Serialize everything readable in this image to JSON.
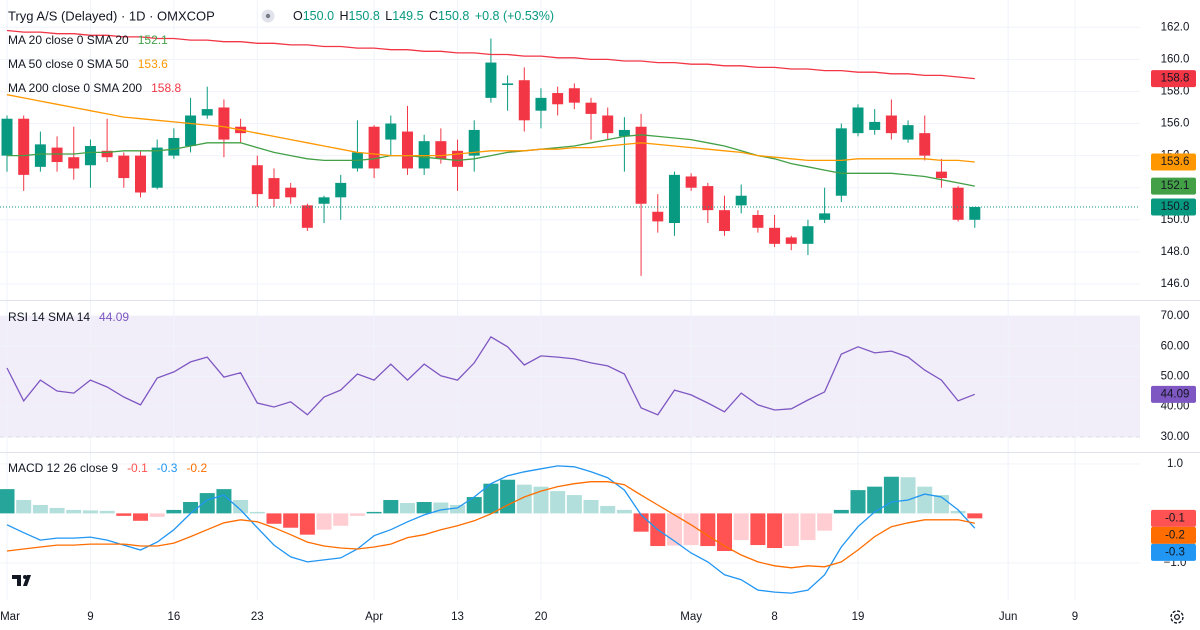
{
  "header": {
    "title": "Tryg A/S (Delayed) · 1D · OMXCOP",
    "ohlc": [
      {
        "key": "O",
        "value": "150.0"
      },
      {
        "key": "H",
        "value": "150.8"
      },
      {
        "key": "L",
        "value": "149.5"
      },
      {
        "key": "C",
        "value": "150.8"
      }
    ],
    "change": "+0.8 (+0.53%)"
  },
  "chart_data": [
    {
      "type": "candlestick",
      "up_color": "#089981",
      "down_color": "#f23645",
      "grid": true,
      "xlim": [
        -0.42,
        67.9
      ],
      "ylim": [
        145.0,
        163.7
      ],
      "yticks": [
        {
          "value": 146,
          "label": "146.0"
        },
        {
          "value": 148,
          "label": "148.0"
        },
        {
          "value": 150,
          "label": "150.0"
        },
        {
          "value": 152,
          "label": "152.0"
        },
        {
          "value": 154,
          "label": "154.0"
        },
        {
          "value": 156,
          "label": "156.0"
        },
        {
          "value": 158,
          "label": "158.0"
        },
        {
          "value": 160,
          "label": "160.0"
        },
        {
          "value": 162,
          "label": "162.0"
        }
      ],
      "open": [
        154.0,
        156.3,
        153.3,
        154.5,
        153.9,
        153.4,
        154.3,
        154.0,
        154.0,
        152.0,
        154.0,
        154.6,
        156.5,
        157.0,
        155.8,
        153.4,
        152.6,
        152.0,
        150.9,
        151.0,
        151.4,
        153.2,
        155.8,
        155.0,
        155.5,
        153.2,
        154.9,
        154.3,
        154.0,
        157.6,
        158.4,
        158.7,
        156.8,
        157.9,
        158.2,
        157.3,
        156.5,
        155.2,
        155.8,
        150.5,
        149.8,
        152.7,
        152.1,
        150.6,
        150.9,
        150.3,
        149.5,
        148.9,
        148.5,
        150.0,
        151.5,
        155.4,
        155.6,
        156.5,
        155.0,
        155.4,
        153.0,
        152.0,
        150.0
      ],
      "high": [
        156.5,
        156.5,
        155.5,
        155.2,
        155.8,
        155.0,
        156.3,
        154.2,
        154.3,
        155.0,
        155.7,
        157.6,
        158.3,
        157.5,
        156.3,
        154.0,
        153.2,
        152.3,
        151.0,
        151.5,
        152.8,
        156.2,
        155.9,
        156.5,
        157.1,
        155.3,
        155.7,
        155.0,
        156.2,
        161.3,
        159.0,
        159.5,
        158.2,
        158.3,
        158.5,
        157.6,
        157.0,
        156.4,
        156.6,
        151.6,
        153.0,
        152.9,
        152.3,
        151.5,
        152.2,
        150.6,
        150.3,
        149.0,
        150.0,
        152.0,
        156.0,
        157.2,
        156.9,
        157.5,
        156.2,
        156.5,
        153.8,
        152.1,
        150.8
      ],
      "low": [
        153.0,
        151.8,
        153.0,
        153.0,
        152.5,
        152.0,
        153.6,
        152.0,
        151.4,
        151.9,
        153.8,
        154.2,
        156.3,
        153.9,
        154.8,
        150.8,
        150.8,
        151.0,
        149.3,
        149.8,
        150.0,
        153.0,
        152.6,
        154.0,
        152.8,
        152.8,
        153.5,
        151.8,
        153.0,
        157.3,
        156.8,
        155.5,
        155.7,
        156.5,
        156.9,
        155.0,
        155.0,
        153.0,
        146.5,
        149.2,
        149.0,
        151.8,
        149.8,
        149.0,
        150.4,
        149.2,
        148.3,
        148.1,
        147.8,
        149.8,
        151.1,
        155.2,
        155.3,
        155.0,
        154.8,
        153.7,
        152.0,
        149.9,
        149.5
      ],
      "close": [
        156.3,
        152.8,
        154.7,
        153.6,
        153.2,
        154.6,
        153.9,
        152.6,
        151.7,
        154.5,
        155.1,
        156.5,
        156.9,
        155.0,
        155.4,
        151.6,
        151.3,
        151.4,
        149.5,
        151.4,
        152.3,
        154.2,
        153.2,
        156.0,
        153.2,
        154.9,
        153.8,
        153.3,
        155.6,
        159.8,
        158.5,
        156.2,
        157.6,
        157.2,
        157.3,
        156.6,
        155.4,
        155.6,
        151.0,
        149.9,
        152.8,
        152.0,
        150.6,
        149.3,
        151.5,
        149.5,
        148.5,
        148.5,
        149.6,
        150.4,
        155.7,
        157.0,
        156.1,
        155.4,
        155.9,
        154.0,
        152.6,
        150.0,
        150.8
      ],
      "series": [
        {
          "name": "MA 20 close 0 SMA 20",
          "color": "#43a047",
          "values": [
            154.0,
            154.0,
            154.1,
            154.1,
            154.1,
            154.2,
            154.2,
            154.3,
            154.3,
            154.3,
            154.4,
            154.6,
            154.8,
            154.8,
            154.8,
            154.5,
            154.2,
            154.0,
            153.8,
            153.7,
            153.7,
            153.7,
            153.8,
            154.0,
            154.0,
            153.9,
            153.8,
            153.7,
            153.8,
            154.0,
            154.2,
            154.3,
            154.4,
            154.5,
            154.6,
            154.8,
            155.0,
            155.2,
            155.3,
            155.2,
            155.1,
            155.0,
            154.8,
            154.6,
            154.3,
            154.0,
            153.8,
            153.5,
            153.3,
            153.1,
            152.9,
            152.9,
            152.9,
            152.9,
            152.8,
            152.7,
            152.5,
            152.3,
            152.1
          ]
        },
        {
          "name": "MA 50 close 0 SMA 50",
          "color": "#ff9800",
          "values": [
            157.8,
            157.6,
            157.4,
            157.2,
            157.0,
            156.8,
            156.6,
            156.4,
            156.3,
            156.2,
            156.1,
            156.0,
            155.9,
            155.8,
            155.6,
            155.4,
            155.2,
            155.0,
            154.8,
            154.6,
            154.4,
            154.2,
            154.1,
            154.0,
            154.0,
            154.0,
            154.0,
            154.1,
            154.2,
            154.3,
            154.3,
            154.3,
            154.4,
            154.4,
            154.5,
            154.5,
            154.6,
            154.7,
            154.8,
            154.7,
            154.6,
            154.5,
            154.4,
            154.3,
            154.2,
            154.0,
            153.9,
            153.8,
            153.7,
            153.7,
            153.7,
            153.8,
            153.8,
            153.8,
            153.8,
            153.8,
            153.7,
            153.7,
            153.6
          ]
        },
        {
          "name": "MA 200 close 0 SMA 200",
          "color": "#f23645",
          "values": [
            161.8,
            161.7,
            161.7,
            161.6,
            161.6,
            161.5,
            161.5,
            161.4,
            161.4,
            161.3,
            161.3,
            161.2,
            161.2,
            161.1,
            161.1,
            161.0,
            161.0,
            160.9,
            160.9,
            160.8,
            160.8,
            160.7,
            160.7,
            160.6,
            160.6,
            160.5,
            160.5,
            160.4,
            160.4,
            160.3,
            160.3,
            160.2,
            160.2,
            160.1,
            160.1,
            160.0,
            160.0,
            159.9,
            159.9,
            159.8,
            159.8,
            159.7,
            159.7,
            159.6,
            159.6,
            159.5,
            159.5,
            159.4,
            159.4,
            159.3,
            159.3,
            159.2,
            159.2,
            159.1,
            159.1,
            159.0,
            159.0,
            158.9,
            158.8
          ]
        }
      ]
    },
    {
      "type": "line",
      "grid": true,
      "xlim": [
        -0.42,
        67.9
      ],
      "ylim": [
        25.0,
        75.3
      ],
      "yticks": [
        {
          "value": 30,
          "label": "30.00"
        },
        {
          "value": 40,
          "label": "40.00"
        },
        {
          "value": 50,
          "label": "50.00"
        },
        {
          "value": 60,
          "label": "60.00"
        },
        {
          "value": 70,
          "label": "70.00"
        }
      ],
      "levels": [
        70,
        30
      ],
      "series": [
        {
          "name": "RSI 14 SMA 14",
          "color": "#7e57c2",
          "values": [
            52.8,
            41.9,
            48.8,
            45.2,
            44.5,
            48.8,
            46.5,
            43.2,
            40.6,
            49.5,
            51.5,
            54.8,
            56.4,
            49.8,
            51.2,
            41.2,
            39.9,
            41.6,
            37.3,
            43.2,
            45.5,
            50.8,
            48.8,
            54.1,
            48.8,
            54.1,
            50.2,
            48.8,
            54.5,
            63.1,
            59.8,
            53.8,
            56.8,
            56.4,
            55.8,
            54.5,
            53.5,
            50.8,
            39.6,
            37.3,
            45.5,
            43.9,
            41.2,
            38.3,
            44.5,
            40.6,
            38.9,
            39.3,
            42.2,
            44.9,
            57.4,
            59.8,
            57.8,
            58.4,
            56.4,
            52.1,
            48.8,
            41.9,
            44.09
          ]
        }
      ]
    },
    {
      "type": "macd",
      "title": "MACD 12 26 close 9",
      "grid": true,
      "xlim": [
        -0.42,
        67.9
      ],
      "ylim": [
        -1.75,
        1.24
      ],
      "yticks": [
        {
          "value": -1,
          "label": "−1.0"
        },
        {
          "value": 1,
          "label": "1.0"
        }
      ],
      "xticks": [
        {
          "value": 0,
          "label": "Mar"
        },
        {
          "value": 5,
          "label": "9"
        },
        {
          "value": 10,
          "label": "16"
        },
        {
          "value": 15,
          "label": "23"
        },
        {
          "value": 22,
          "label": "Apr"
        },
        {
          "value": 27,
          "label": "13"
        },
        {
          "value": 32,
          "label": "20"
        },
        {
          "value": 41,
          "label": "May"
        },
        {
          "value": 46,
          "label": "8"
        },
        {
          "value": 51,
          "label": "19"
        },
        {
          "value": 60,
          "label": "Jun"
        },
        {
          "value": 64,
          "label": "9"
        }
      ],
      "histogram_colors": [
        "#26a69a",
        "#b2dfdb",
        "#ffcdd2",
        "#ff5252"
      ],
      "histogram": [
        0.49,
        0.27,
        0.17,
        0.11,
        0.07,
        0.06,
        0.05,
        -0.05,
        -0.15,
        -0.07,
        0.07,
        0.23,
        0.41,
        0.49,
        0.27,
        0.03,
        -0.21,
        -0.29,
        -0.43,
        -0.33,
        -0.25,
        -0.05,
        0.03,
        0.27,
        0.21,
        0.23,
        0.22,
        0.17,
        0.33,
        0.6,
        0.68,
        0.58,
        0.54,
        0.45,
        0.37,
        0.27,
        0.15,
        0.07,
        -0.37,
        -0.66,
        -0.65,
        -0.64,
        -0.66,
        -0.76,
        -0.54,
        -0.64,
        -0.7,
        -0.66,
        -0.54,
        -0.35,
        0.07,
        0.47,
        0.54,
        0.74,
        0.73,
        0.54,
        0.37,
        0.05,
        -0.1
      ],
      "macd_color": "#2196f3",
      "macd": [
        -0.23,
        -0.39,
        -0.54,
        -0.5,
        -0.5,
        -0.48,
        -0.54,
        -0.64,
        -0.74,
        -0.58,
        -0.33,
        0,
        0.27,
        0.37,
        0.07,
        -0.29,
        -0.64,
        -0.88,
        -0.98,
        -0.94,
        -0.9,
        -0.72,
        -0.45,
        -0.33,
        -0.17,
        -0.03,
        0.07,
        0.11,
        0.33,
        0.6,
        0.76,
        0.84,
        0.9,
        0.96,
        0.94,
        0.84,
        0.72,
        0.47,
        -0.03,
        -0.33,
        -0.56,
        -0.8,
        -0.98,
        -1.24,
        -1.34,
        -1.55,
        -1.59,
        -1.61,
        -1.55,
        -1.24,
        -0.68,
        -0.27,
        0.03,
        0.23,
        0.27,
        0.39,
        0.33,
        0.07,
        -0.3
      ],
      "signal_color": "#ff6d00",
      "signal": [
        -0.76,
        -0.72,
        -0.68,
        -0.64,
        -0.64,
        -0.62,
        -0.62,
        -0.62,
        -0.66,
        -0.66,
        -0.6,
        -0.47,
        -0.33,
        -0.19,
        -0.13,
        -0.17,
        -0.29,
        -0.43,
        -0.58,
        -0.66,
        -0.7,
        -0.72,
        -0.68,
        -0.62,
        -0.49,
        -0.43,
        -0.33,
        -0.25,
        -0.15,
        -0.01,
        0.17,
        0.33,
        0.45,
        0.54,
        0.6,
        0.64,
        0.64,
        0.58,
        0.37,
        0.17,
        -0.03,
        -0.23,
        -0.45,
        -0.66,
        -0.84,
        -0.98,
        -1.06,
        -1.1,
        -1.06,
        -1.08,
        -0.98,
        -0.74,
        -0.47,
        -0.27,
        -0.19,
        -0.13,
        -0.13,
        -0.13,
        -0.2
      ]
    }
  ]
}
